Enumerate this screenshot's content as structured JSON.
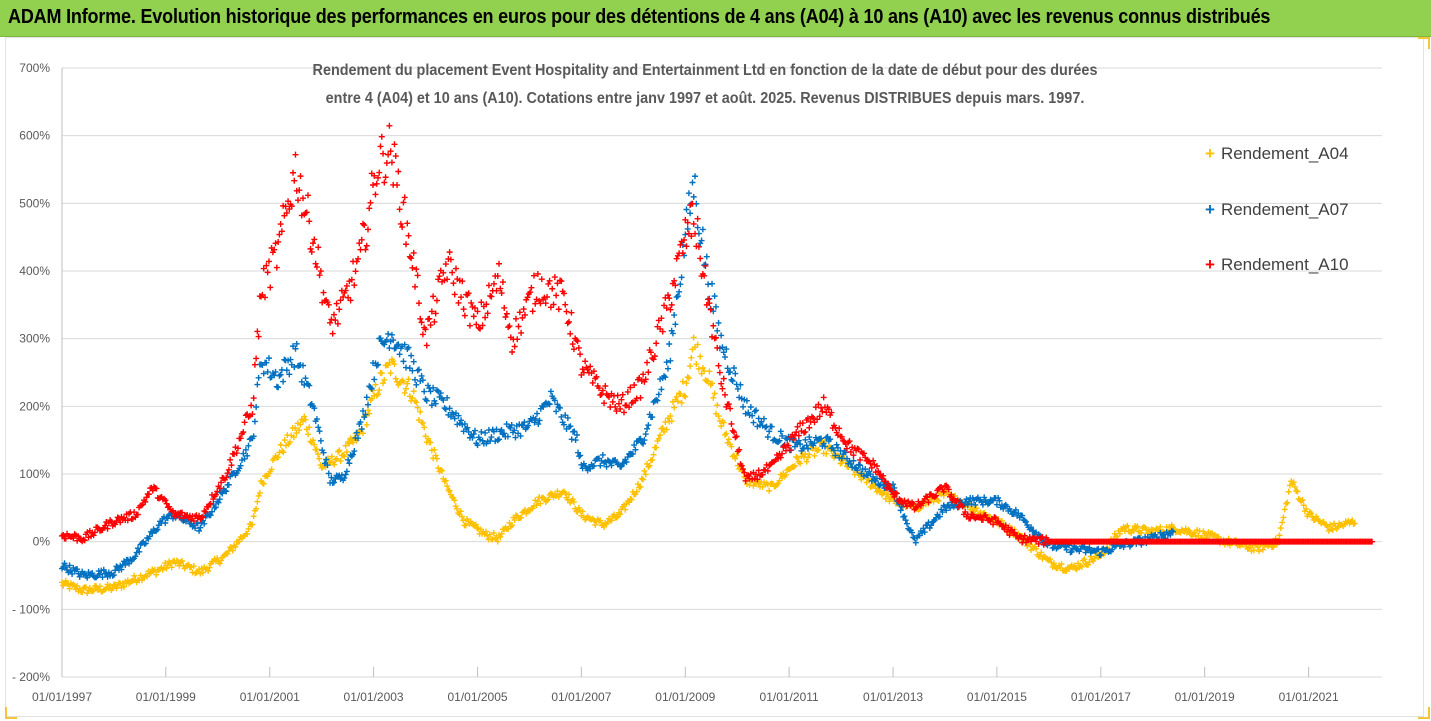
{
  "banner": {
    "title": "ADAM Informe. Evolution historique des performances en euros pour des détentions de 4 ans (A04) à 10 ans (A10) avec les revenus connus distribués"
  },
  "colors": {
    "banner_bg": "#92d050",
    "A04": "#ffc000",
    "A07": "#0070c0",
    "A10": "#ff0000"
  },
  "chart_data": {
    "type": "scatter",
    "title_line1": "Rendement du placement Event Hospitality and Entertainment Ltd en fonction de la date de début pour des durées",
    "title_line2": "entre 4 (A04) et 10 ans (A10). Cotations entre janv 1997 et août. 2025. Revenus DISTRIBUES depuis mars. 1997.",
    "x_type": "date",
    "xlim": [
      "1997-01-01",
      "2022-06-01"
    ],
    "x_tick_labels": [
      "01/01/1997",
      "01/01/1999",
      "01/01/2001",
      "01/01/2003",
      "01/01/2005",
      "01/01/2007",
      "01/01/2009",
      "01/01/2011",
      "01/01/2013",
      "01/01/2015",
      "01/01/2017",
      "01/01/2019",
      "01/01/2021"
    ],
    "ylim": [
      -200,
      700
    ],
    "y_tick_labels": [
      "- 200%",
      "- 100%",
      "0%",
      "100%",
      "200%",
      "300%",
      "400%",
      "500%",
      "600%",
      "700%"
    ],
    "y_unit": "%",
    "grid": "horizontal",
    "legend_position": "right",
    "series": [
      {
        "name": "Rendement_A04",
        "color": "#ffc000",
        "points": [
          [
            "1997-01-01",
            -62
          ],
          [
            "1997-06-01",
            -72
          ],
          [
            "1998-01-01",
            -68
          ],
          [
            "1998-06-01",
            -55
          ],
          [
            "1998-12-01",
            -40
          ],
          [
            "1999-03-01",
            -30
          ],
          [
            "1999-09-01",
            -45
          ],
          [
            "2000-03-01",
            -20
          ],
          [
            "2000-09-01",
            25
          ],
          [
            "2000-11-01",
            85
          ],
          [
            "2001-03-01",
            130
          ],
          [
            "2001-09-01",
            180
          ],
          [
            "2001-11-01",
            150
          ],
          [
            "2002-01-01",
            110
          ],
          [
            "2002-06-01",
            130
          ],
          [
            "2002-10-01",
            160
          ],
          [
            "2003-02-01",
            230
          ],
          [
            "2003-05-01",
            260
          ],
          [
            "2003-10-01",
            220
          ],
          [
            "2004-01-01",
            160
          ],
          [
            "2004-06-01",
            80
          ],
          [
            "2004-10-01",
            30
          ],
          [
            "2005-03-01",
            10
          ],
          [
            "2005-06-01",
            5
          ],
          [
            "2005-09-01",
            30
          ],
          [
            "2006-03-01",
            60
          ],
          [
            "2006-09-01",
            75
          ],
          [
            "2007-01-01",
            40
          ],
          [
            "2007-06-01",
            25
          ],
          [
            "2007-10-01",
            40
          ],
          [
            "2008-03-01",
            90
          ],
          [
            "2008-09-01",
            180
          ],
          [
            "2009-01-01",
            230
          ],
          [
            "2009-03-01",
            290
          ],
          [
            "2009-06-01",
            250
          ],
          [
            "2009-09-01",
            180
          ],
          [
            "2010-03-01",
            90
          ],
          [
            "2010-09-01",
            80
          ],
          [
            "2011-03-01",
            120
          ],
          [
            "2011-09-01",
            140
          ],
          [
            "2012-03-01",
            110
          ],
          [
            "2012-09-01",
            80
          ],
          [
            "2013-01-01",
            60
          ],
          [
            "2013-06-01",
            50
          ],
          [
            "2014-01-01",
            70
          ],
          [
            "2014-06-01",
            55
          ],
          [
            "2015-01-01",
            30
          ],
          [
            "2015-06-01",
            10
          ],
          [
            "2016-01-01",
            -30
          ],
          [
            "2016-06-01",
            -40
          ],
          [
            "2017-01-01",
            -20
          ],
          [
            "2017-06-01",
            20
          ],
          [
            "2018-01-01",
            15
          ],
          [
            "2018-06-01",
            20
          ],
          [
            "2019-01-01",
            10
          ],
          [
            "2019-06-01",
            0
          ],
          [
            "2020-01-01",
            -10
          ],
          [
            "2020-06-01",
            0
          ],
          [
            "2020-09-01",
            90
          ],
          [
            "2021-01-01",
            40
          ],
          [
            "2021-06-01",
            20
          ],
          [
            "2021-12-01",
            30
          ]
        ]
      },
      {
        "name": "Rendement_A07",
        "color": "#0070c0",
        "points": [
          [
            "1997-01-01",
            -35
          ],
          [
            "1997-06-01",
            -50
          ],
          [
            "1998-01-01",
            -45
          ],
          [
            "1998-06-01",
            -20
          ],
          [
            "1998-12-01",
            30
          ],
          [
            "1999-03-01",
            40
          ],
          [
            "1999-09-01",
            20
          ],
          [
            "2000-03-01",
            80
          ],
          [
            "2000-09-01",
            150
          ],
          [
            "2000-11-01",
            270
          ],
          [
            "2001-03-01",
            240
          ],
          [
            "2001-07-01",
            280
          ],
          [
            "2001-11-01",
            200
          ],
          [
            "2002-03-01",
            90
          ],
          [
            "2002-06-01",
            95
          ],
          [
            "2002-10-01",
            170
          ],
          [
            "2003-02-01",
            280
          ],
          [
            "2003-05-01",
            310
          ],
          [
            "2003-10-01",
            260
          ],
          [
            "2004-01-01",
            220
          ],
          [
            "2004-06-01",
            200
          ],
          [
            "2005-01-01",
            150
          ],
          [
            "2005-06-01",
            160
          ],
          [
            "2006-01-01",
            170
          ],
          [
            "2006-06-01",
            210
          ],
          [
            "2006-12-01",
            150
          ],
          [
            "2007-01-01",
            110
          ],
          [
            "2007-06-01",
            120
          ],
          [
            "2007-10-01",
            110
          ],
          [
            "2008-03-01",
            150
          ],
          [
            "2008-09-01",
            260
          ],
          [
            "2009-01-01",
            450
          ],
          [
            "2009-03-01",
            530
          ],
          [
            "2009-06-01",
            400
          ],
          [
            "2009-09-01",
            300
          ],
          [
            "2010-03-01",
            200
          ],
          [
            "2010-09-01",
            160
          ],
          [
            "2011-03-01",
            140
          ],
          [
            "2011-09-01",
            150
          ],
          [
            "2012-03-01",
            120
          ],
          [
            "2012-09-01",
            90
          ],
          [
            "2013-01-01",
            80
          ],
          [
            "2013-06-01",
            0
          ],
          [
            "2014-01-01",
            50
          ],
          [
            "2014-06-01",
            60
          ],
          [
            "2015-01-01",
            60
          ],
          [
            "2015-06-01",
            40
          ],
          [
            "2016-01-01",
            -5
          ],
          [
            "2016-06-01",
            -10
          ],
          [
            "2017-01-01",
            -15
          ],
          [
            "2017-06-01",
            -5
          ],
          [
            "2018-01-01",
            5
          ],
          [
            "2018-06-01",
            15
          ]
        ]
      },
      {
        "name": "Rendement_A10",
        "color": "#ff0000",
        "points": [
          [
            "1997-01-01",
            10
          ],
          [
            "1997-06-01",
            5
          ],
          [
            "1998-01-01",
            30
          ],
          [
            "1998-06-01",
            40
          ],
          [
            "1998-10-01",
            80
          ],
          [
            "1999-03-01",
            40
          ],
          [
            "1999-09-01",
            35
          ],
          [
            "2000-03-01",
            100
          ],
          [
            "2000-09-01",
            200
          ],
          [
            "2000-11-01",
            370
          ],
          [
            "2001-03-01",
            430
          ],
          [
            "2001-07-01",
            550
          ],
          [
            "2001-11-01",
            450
          ],
          [
            "2002-03-01",
            320
          ],
          [
            "2002-06-01",
            350
          ],
          [
            "2002-10-01",
            420
          ],
          [
            "2003-02-01",
            560
          ],
          [
            "2003-05-01",
            580
          ],
          [
            "2003-10-01",
            420
          ],
          [
            "2004-01-01",
            300
          ],
          [
            "2004-06-01",
            410
          ],
          [
            "2005-01-01",
            320
          ],
          [
            "2005-06-01",
            390
          ],
          [
            "2005-09-01",
            300
          ],
          [
            "2006-03-01",
            380
          ],
          [
            "2006-09-01",
            360
          ],
          [
            "2007-01-01",
            260
          ],
          [
            "2007-06-01",
            220
          ],
          [
            "2007-10-01",
            200
          ],
          [
            "2008-03-01",
            230
          ],
          [
            "2008-09-01",
            350
          ],
          [
            "2009-01-01",
            450
          ],
          [
            "2009-03-01",
            480
          ],
          [
            "2009-06-01",
            370
          ],
          [
            "2009-09-01",
            250
          ],
          [
            "2010-03-01",
            90
          ],
          [
            "2010-09-01",
            110
          ],
          [
            "2011-03-01",
            160
          ],
          [
            "2011-09-01",
            200
          ],
          [
            "2012-03-01",
            140
          ],
          [
            "2012-09-01",
            110
          ],
          [
            "2013-01-01",
            70
          ],
          [
            "2013-06-01",
            50
          ],
          [
            "2014-01-01",
            80
          ],
          [
            "2014-06-01",
            40
          ],
          [
            "2015-01-01",
            30
          ],
          [
            "2015-06-01",
            5
          ],
          [
            "2016-01-01",
            0
          ],
          [
            "2017-01-01",
            0
          ],
          [
            "2018-01-01",
            0
          ],
          [
            "2019-01-01",
            0
          ],
          [
            "2020-01-01",
            0
          ],
          [
            "2021-01-01",
            0
          ],
          [
            "2022-04-01",
            0
          ]
        ]
      }
    ]
  }
}
